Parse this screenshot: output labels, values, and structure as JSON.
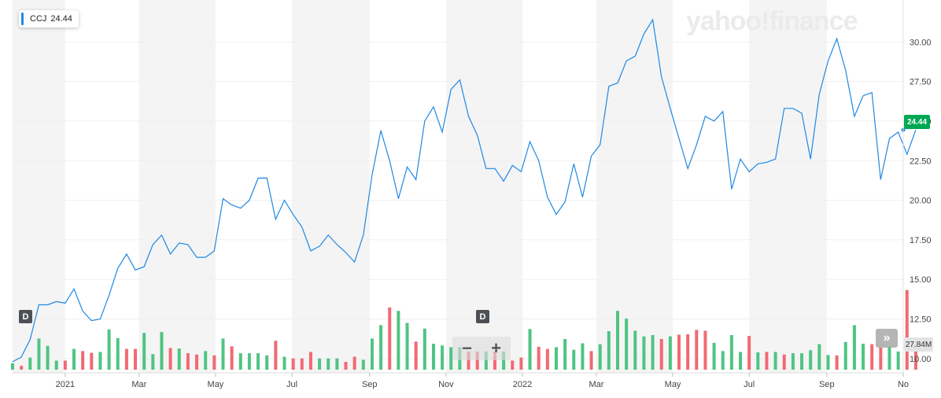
{
  "legend": {
    "symbol": "CCJ",
    "value": "24.44",
    "color": "#1e88e5"
  },
  "brand": "yahoo!finance",
  "price_flag": "24.44",
  "volume_flag": "27.84M",
  "markers": {
    "dividend_left": "D",
    "dividend_mid": "D"
  },
  "zoom": {
    "minus": "−",
    "plus": "+"
  },
  "scroll_right": "»",
  "colors": {
    "line": "#1e88e5",
    "vol_up": "#4fc483",
    "vol_down": "#f06a73",
    "band": "#f4f4f4",
    "price_flag_bg": "#00a854"
  },
  "chart_data": {
    "type": "line",
    "title": "",
    "xlabel": "",
    "ylabel": "",
    "x_range": [
      "2020-11-20",
      "2022-11-01"
    ],
    "ylim": [
      9.3,
      32.0
    ],
    "y_ticks": [
      "30.00",
      "27.50",
      "25.00",
      "22.50",
      "20.00",
      "17.50",
      "15.00",
      "12.50",
      "10.00"
    ],
    "y_tick_values": [
      30,
      27.5,
      25,
      22.5,
      20,
      17.5,
      15,
      12.5,
      10
    ],
    "x_tick_labels": [
      {
        "label": "2021",
        "date": "2021-01-01"
      },
      {
        "label": "Mar",
        "date": "2021-03-01"
      },
      {
        "label": "May",
        "date": "2021-05-01"
      },
      {
        "label": "Jul",
        "date": "2021-07-01"
      },
      {
        "label": "Sep",
        "date": "2021-09-01"
      },
      {
        "label": "Nov",
        "date": "2021-11-01"
      },
      {
        "label": "2022",
        "date": "2022-01-01"
      },
      {
        "label": "Mar",
        "date": "2022-03-01"
      },
      {
        "label": "May",
        "date": "2022-05-01"
      },
      {
        "label": "Jul",
        "date": "2022-07-01"
      },
      {
        "label": "Sep",
        "date": "2022-09-01"
      },
      {
        "label": "No",
        "date": "2022-11-01"
      }
    ],
    "shaded_bands": [
      [
        "2020-11-20",
        "2021-01-01"
      ],
      [
        "2021-03-01",
        "2021-05-01"
      ],
      [
        "2021-07-01",
        "2021-09-01"
      ],
      [
        "2021-11-01",
        "2022-01-01"
      ],
      [
        "2022-03-01",
        "2022-05-01"
      ],
      [
        "2022-07-01",
        "2022-09-01"
      ]
    ],
    "series": [
      {
        "values": [
          [
            "2020-11-20",
            9.8
          ],
          [
            "2020-11-27",
            10.1
          ],
          [
            "2020-12-04",
            11.2
          ],
          [
            "2020-12-11",
            13.4
          ],
          [
            "2020-12-18",
            13.4
          ],
          [
            "2020-12-25",
            13.6
          ],
          [
            "2021-01-01",
            13.5
          ],
          [
            "2021-01-08",
            14.4
          ],
          [
            "2021-01-15",
            13.0
          ],
          [
            "2021-01-22",
            12.4
          ],
          [
            "2021-01-29",
            12.5
          ],
          [
            "2021-02-05",
            14.0
          ],
          [
            "2021-02-12",
            15.7
          ],
          [
            "2021-02-19",
            16.6
          ],
          [
            "2021-02-26",
            15.6
          ],
          [
            "2021-03-05",
            15.8
          ],
          [
            "2021-03-12",
            17.2
          ],
          [
            "2021-03-19",
            17.8
          ],
          [
            "2021-03-26",
            16.6
          ],
          [
            "2021-04-02",
            17.3
          ],
          [
            "2021-04-09",
            17.2
          ],
          [
            "2021-04-16",
            16.4
          ],
          [
            "2021-04-23",
            16.4
          ],
          [
            "2021-04-30",
            16.8
          ],
          [
            "2021-05-07",
            20.1
          ],
          [
            "2021-05-14",
            19.7
          ],
          [
            "2021-05-21",
            19.5
          ],
          [
            "2021-05-28",
            20.0
          ],
          [
            "2021-06-04",
            21.4
          ],
          [
            "2021-06-11",
            21.4
          ],
          [
            "2021-06-18",
            18.8
          ],
          [
            "2021-06-25",
            20.0
          ],
          [
            "2021-07-02",
            19.1
          ],
          [
            "2021-07-09",
            18.3
          ],
          [
            "2021-07-16",
            16.8
          ],
          [
            "2021-07-23",
            17.1
          ],
          [
            "2021-07-30",
            17.8
          ],
          [
            "2021-08-06",
            17.2
          ],
          [
            "2021-08-13",
            16.7
          ],
          [
            "2021-08-20",
            16.1
          ],
          [
            "2021-08-27",
            17.8
          ],
          [
            "2021-09-03",
            21.6
          ],
          [
            "2021-09-10",
            24.4
          ],
          [
            "2021-09-17",
            22.5
          ],
          [
            "2021-09-24",
            20.1
          ],
          [
            "2021-10-01",
            22.1
          ],
          [
            "2021-10-08",
            21.3
          ],
          [
            "2021-10-15",
            25.0
          ],
          [
            "2021-10-22",
            25.9
          ],
          [
            "2021-10-29",
            24.3
          ],
          [
            "2021-11-05",
            27.0
          ],
          [
            "2021-11-12",
            27.6
          ],
          [
            "2021-11-19",
            25.3
          ],
          [
            "2021-11-26",
            24.1
          ],
          [
            "2021-12-03",
            22.0
          ],
          [
            "2021-12-10",
            22.0
          ],
          [
            "2021-12-17",
            21.2
          ],
          [
            "2021-12-24",
            22.2
          ],
          [
            "2021-12-31",
            21.8
          ],
          [
            "2022-01-07",
            23.7
          ],
          [
            "2022-01-14",
            22.5
          ],
          [
            "2022-01-21",
            20.2
          ],
          [
            "2022-01-28",
            19.1
          ],
          [
            "2022-02-04",
            19.9
          ],
          [
            "2022-02-11",
            22.3
          ],
          [
            "2022-02-18",
            20.2
          ],
          [
            "2022-02-25",
            22.8
          ],
          [
            "2022-03-04",
            23.5
          ],
          [
            "2022-03-11",
            27.2
          ],
          [
            "2022-03-18",
            27.4
          ],
          [
            "2022-03-25",
            28.8
          ],
          [
            "2022-04-01",
            29.1
          ],
          [
            "2022-04-08",
            30.5
          ],
          [
            "2022-04-15",
            31.4
          ],
          [
            "2022-04-22",
            27.8
          ],
          [
            "2022-04-29",
            25.8
          ],
          [
            "2022-05-06",
            23.9
          ],
          [
            "2022-05-13",
            22.0
          ],
          [
            "2022-05-20",
            23.5
          ],
          [
            "2022-05-27",
            25.3
          ],
          [
            "2022-06-03",
            25.0
          ],
          [
            "2022-06-10",
            25.6
          ],
          [
            "2022-06-17",
            20.7
          ],
          [
            "2022-06-24",
            22.6
          ],
          [
            "2022-07-01",
            21.8
          ],
          [
            "2022-07-08",
            22.3
          ],
          [
            "2022-07-15",
            22.4
          ],
          [
            "2022-07-22",
            22.6
          ],
          [
            "2022-07-29",
            25.8
          ],
          [
            "2022-08-05",
            25.8
          ],
          [
            "2022-08-12",
            25.5
          ],
          [
            "2022-08-19",
            22.6
          ],
          [
            "2022-08-26",
            26.7
          ],
          [
            "2022-09-02",
            28.8
          ],
          [
            "2022-09-09",
            30.2
          ],
          [
            "2022-09-16",
            28.2
          ],
          [
            "2022-09-23",
            25.3
          ],
          [
            "2022-09-30",
            26.6
          ],
          [
            "2022-10-07",
            26.8
          ],
          [
            "2022-10-14",
            21.3
          ],
          [
            "2022-10-21",
            23.9
          ],
          [
            "2022-10-28",
            24.3
          ],
          [
            "2022-11-04",
            22.9
          ],
          [
            "2022-11-11",
            24.44
          ]
        ]
      }
    ],
    "volume_ylim": [
      0,
      1
    ],
    "volume": [
      [
        0.15,
        1
      ],
      [
        0.09,
        0
      ],
      [
        0.28,
        1
      ],
      [
        0.72,
        1
      ],
      [
        0.55,
        1
      ],
      [
        0.21,
        1
      ],
      [
        0.21,
        0
      ],
      [
        0.48,
        1
      ],
      [
        0.43,
        0
      ],
      [
        0.39,
        0
      ],
      [
        0.41,
        1
      ],
      [
        0.93,
        1
      ],
      [
        0.73,
        1
      ],
      [
        0.48,
        0
      ],
      [
        0.48,
        0
      ],
      [
        0.85,
        1
      ],
      [
        0.36,
        1
      ],
      [
        0.87,
        1
      ],
      [
        0.5,
        0
      ],
      [
        0.49,
        1
      ],
      [
        0.38,
        0
      ],
      [
        0.35,
        0
      ],
      [
        0.43,
        1
      ],
      [
        0.33,
        0
      ],
      [
        0.72,
        1
      ],
      [
        0.54,
        0
      ],
      [
        0.38,
        1
      ],
      [
        0.38,
        1
      ],
      [
        0.38,
        1
      ],
      [
        0.33,
        1
      ],
      [
        0.67,
        0
      ],
      [
        0.3,
        1
      ],
      [
        0.26,
        0
      ],
      [
        0.26,
        0
      ],
      [
        0.41,
        0
      ],
      [
        0.26,
        1
      ],
      [
        0.26,
        1
      ],
      [
        0.26,
        1
      ],
      [
        0.18,
        0
      ],
      [
        0.3,
        0
      ],
      [
        0.23,
        1
      ],
      [
        0.72,
        1
      ],
      [
        1.03,
        1
      ],
      [
        1.44,
        0
      ],
      [
        1.36,
        1
      ],
      [
        1.08,
        1
      ],
      [
        0.65,
        0
      ],
      [
        0.95,
        1
      ],
      [
        0.6,
        1
      ],
      [
        0.56,
        1
      ],
      [
        0.52,
        1
      ],
      [
        0.52,
        1
      ],
      [
        0.42,
        0
      ],
      [
        0.42,
        0
      ],
      [
        0.42,
        1
      ],
      [
        0.42,
        0
      ],
      [
        0.42,
        1
      ],
      [
        0.21,
        0
      ],
      [
        0.28,
        0
      ],
      [
        0.94,
        1
      ],
      [
        0.53,
        0
      ],
      [
        0.48,
        0
      ],
      [
        0.52,
        1
      ],
      [
        0.71,
        1
      ],
      [
        0.46,
        1
      ],
      [
        0.61,
        1
      ],
      [
        0.43,
        0
      ],
      [
        0.59,
        1
      ],
      [
        0.89,
        1
      ],
      [
        1.36,
        1
      ],
      [
        1.18,
        1
      ],
      [
        0.9,
        1
      ],
      [
        0.77,
        1
      ],
      [
        0.8,
        1
      ],
      [
        0.71,
        0
      ],
      [
        0.77,
        1
      ],
      [
        0.81,
        0
      ],
      [
        0.82,
        0
      ],
      [
        0.92,
        0
      ],
      [
        0.9,
        0
      ],
      [
        0.62,
        1
      ],
      [
        0.43,
        1
      ],
      [
        0.8,
        1
      ],
      [
        0.41,
        1
      ],
      [
        0.78,
        0
      ],
      [
        0.4,
        1
      ],
      [
        0.41,
        0
      ],
      [
        0.41,
        1
      ],
      [
        0.35,
        0
      ],
      [
        0.38,
        1
      ],
      [
        0.38,
        1
      ],
      [
        0.45,
        1
      ],
      [
        0.59,
        1
      ],
      [
        0.34,
        1
      ],
      [
        0.33,
        0
      ],
      [
        0.64,
        1
      ],
      [
        1.03,
        1
      ],
      [
        0.6,
        1
      ],
      [
        0.59,
        0
      ],
      [
        0.51,
        0
      ],
      [
        0.52,
        1
      ],
      [
        0.42,
        1
      ],
      [
        1.84,
        0
      ],
      [
        0.5,
        0
      ],
      [
        0.45,
        1
      ],
      [
        0.36,
        0
      ]
    ]
  }
}
